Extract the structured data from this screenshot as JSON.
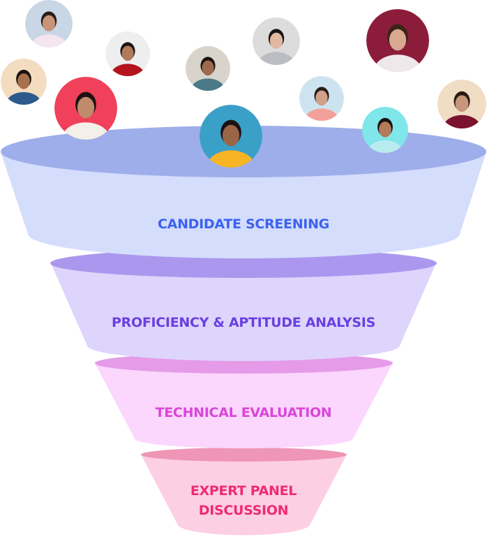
{
  "stages": [
    {
      "label": "CANDIDATE SCREENING",
      "top_color": "#9eaeea",
      "body_color": "#d5ddfd",
      "text_color": "#3b63f0"
    },
    {
      "label": "PROFICIENCY & APTITUDE ANALYSIS",
      "top_color": "#ab98ee",
      "body_color": "#ded5fd",
      "text_color": "#6a3fe0"
    },
    {
      "label": "TECHNICAL EVALUATION",
      "top_color": "#e59be8",
      "body_color": "#fbd6fd",
      "text_color": "#d946d9"
    },
    {
      "label_line1": "EXPERT PANEL",
      "label_line2": "DISCUSSION",
      "top_color": "#ef95b6",
      "body_color": "#fdcfe3",
      "text_color": "#ee2a74"
    }
  ],
  "avatars": [
    {
      "bg": "#c9d6e6",
      "skin": "#c89478",
      "shirt": "#f3e6ee",
      "hair": "#2a1c16"
    },
    {
      "bg": "#eeeeee",
      "skin": "#b07a5c",
      "shirt": "#b4141e",
      "hair": "#1c1412"
    },
    {
      "bg": "#f3dcc0",
      "skin": "#a8704e",
      "shirt": "#2c5a8c",
      "hair": "#1a1210"
    },
    {
      "bg": "#f0405a",
      "skin": "#c08a6c",
      "shirt": "#f4efe8",
      "hair": "#1c1210"
    },
    {
      "bg": "#d8d4cc",
      "skin": "#9c6a4c",
      "shirt": "#4a7a88",
      "hair": "#1a1210"
    },
    {
      "bg": "#dcdcdc",
      "skin": "#e0b8a0",
      "shirt": "#bcbcc4",
      "hair": "#1a1414"
    },
    {
      "bg": "#3aa0c8",
      "skin": "#9a6648",
      "shirt": "#f7b526",
      "hair": "#1a1210"
    },
    {
      "bg": "#cde4f0",
      "skin": "#d0a088",
      "shirt": "#f4a09a",
      "hair": "#2a1c16"
    },
    {
      "bg": "#8c1d3a",
      "skin": "#d8a890",
      "shirt": "#efe8ea",
      "hair": "#3a2418"
    },
    {
      "bg": "#f1dcc4",
      "skin": "#c8967a",
      "shirt": "#7a1230",
      "hair": "#2a1a14"
    },
    {
      "bg": "#7fe6ea",
      "skin": "#b47a5c",
      "shirt": "#b8ecf0",
      "hair": "#1a1210"
    }
  ]
}
